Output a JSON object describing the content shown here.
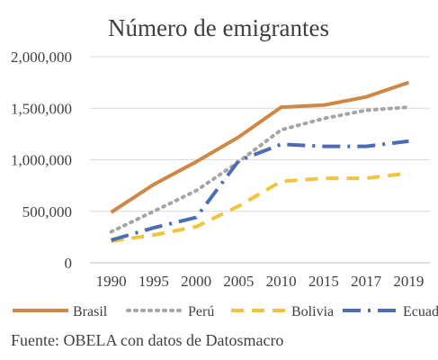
{
  "chart_data": {
    "type": "line",
    "title": "Número de emigrantes",
    "categories": [
      "1990",
      "1995",
      "2000",
      "2005",
      "2010",
      "2015",
      "2017",
      "2019"
    ],
    "y_ticks": [
      "0",
      "500,000",
      "1,000,000",
      "1,500,000",
      "2,000,000"
    ],
    "ylim": [
      0,
      2000000
    ],
    "grid": true,
    "legend_position": "bottom",
    "series": [
      {
        "name": "Brasil",
        "color": "#D08743",
        "dash": "solid",
        "values": [
          490000,
          760000,
          980000,
          1220000,
          1510000,
          1530000,
          1610000,
          1750000
        ]
      },
      {
        "name": "Perú",
        "color": "#A5A5A5",
        "dash": "dot",
        "values": [
          300000,
          500000,
          700000,
          980000,
          1290000,
          1400000,
          1480000,
          1510000
        ]
      },
      {
        "name": "Bolivia",
        "color": "#F0C43C",
        "dash": "dash",
        "values": [
          210000,
          270000,
          350000,
          550000,
          790000,
          820000,
          820000,
          870000
        ]
      },
      {
        "name": "Ecuador",
        "color": "#4C6CB5",
        "dash": "dashdot",
        "values": [
          220000,
          340000,
          440000,
          990000,
          1150000,
          1130000,
          1130000,
          1180000
        ]
      }
    ],
    "source": "Fuente: OBELA con datos de Datosmacro"
  }
}
